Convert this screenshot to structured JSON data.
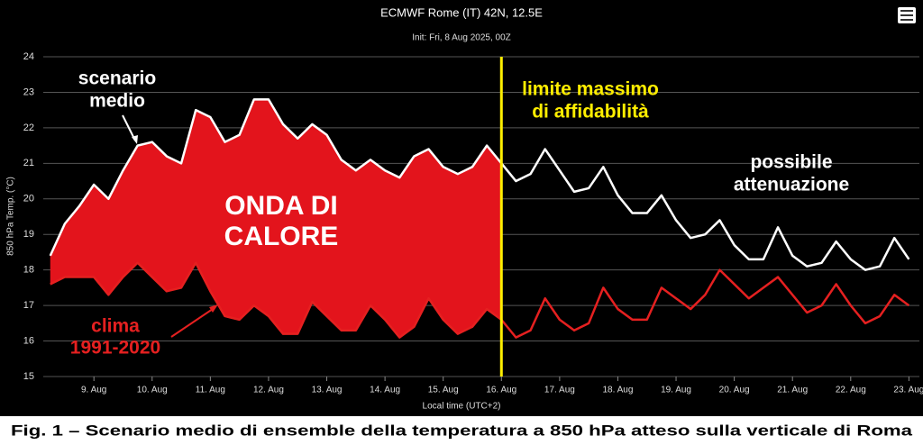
{
  "chart_data": {
    "type": "line",
    "title": "ECMWF Rome (IT) 42N, 12.5E",
    "subtitle": "Init: Fri, 8 Aug 2025, 00Z",
    "y_label": "850 hPa Temp. (°C)",
    "x_label": "Local time (UTC+2)",
    "caption": "Fig. 1 – Scenario medio di ensemble della temperatura a 850 hPa atteso sulla verticale di Roma",
    "xlim": [
      8.13,
      23.18
    ],
    "ylim": [
      15,
      24
    ],
    "yticks": [
      15,
      16,
      17,
      18,
      19,
      20,
      21,
      22,
      23,
      24
    ],
    "xticks": [
      {
        "value": 9,
        "label": "9. Aug"
      },
      {
        "value": 10,
        "label": "10. Aug"
      },
      {
        "value": 11,
        "label": "11. Aug"
      },
      {
        "value": 12,
        "label": "12. Aug"
      },
      {
        "value": 13,
        "label": "13. Aug"
      },
      {
        "value": 14,
        "label": "14. Aug"
      },
      {
        "value": 15,
        "label": "15. Aug"
      },
      {
        "value": 16,
        "label": "16. Aug"
      },
      {
        "value": 17,
        "label": "17. Aug"
      },
      {
        "value": 18,
        "label": "18. Aug"
      },
      {
        "value": 19,
        "label": "19. Aug"
      },
      {
        "value": 20,
        "label": "20. Aug"
      },
      {
        "value": 21,
        "label": "21. Aug"
      },
      {
        "value": 22,
        "label": "22. Aug"
      },
      {
        "value": 23,
        "label": "23. Aug"
      }
    ],
    "grid": true,
    "x": [
      8.25,
      8.5,
      8.75,
      9,
      9.25,
      9.5,
      9.75,
      10,
      10.25,
      10.5,
      10.75,
      11,
      11.25,
      11.5,
      11.75,
      12,
      12.25,
      12.5,
      12.75,
      13,
      13.25,
      13.5,
      13.75,
      14,
      14.25,
      14.5,
      14.75,
      15,
      15.25,
      15.5,
      15.75,
      16,
      16.25,
      16.5,
      16.75,
      17,
      17.25,
      17.5,
      17.75,
      18,
      18.25,
      18.5,
      18.75,
      19,
      19.25,
      19.5,
      19.75,
      20,
      20.25,
      20.5,
      20.75,
      21,
      21.25,
      21.5,
      21.75,
      22,
      22.25,
      22.5,
      22.75,
      23
    ],
    "series": [
      {
        "label_lines": [
          "scenario",
          "medio"
        ],
        "color": "#ffffff",
        "values": [
          18.4,
          19.3,
          19.8,
          20.4,
          20.0,
          20.8,
          21.5,
          21.6,
          21.2,
          21.0,
          22.5,
          22.3,
          21.6,
          21.8,
          22.8,
          22.8,
          22.1,
          21.7,
          22.1,
          21.8,
          21.1,
          20.8,
          21.1,
          20.8,
          20.6,
          21.2,
          21.4,
          20.9,
          20.7,
          20.9,
          21.5,
          21.0,
          20.5,
          20.7,
          21.4,
          20.8,
          20.2,
          20.3,
          20.9,
          20.1,
          19.6,
          19.6,
          20.1,
          19.4,
          18.9,
          19.0,
          19.4,
          18.7,
          18.3,
          18.3,
          19.2,
          18.4,
          18.1,
          18.2,
          18.8,
          18.3,
          18.0,
          18.1,
          18.9,
          18.3
        ]
      },
      {
        "label_lines": [
          "clima",
          "1991-2020"
        ],
        "color": "#e52020",
        "values": [
          17.6,
          17.8,
          17.8,
          17.8,
          17.3,
          17.8,
          18.2,
          17.8,
          17.4,
          17.5,
          18.2,
          17.4,
          16.7,
          16.6,
          17.0,
          16.7,
          16.2,
          16.2,
          17.1,
          16.7,
          16.3,
          16.3,
          17.0,
          16.6,
          16.1,
          16.4,
          17.2,
          16.6,
          16.2,
          16.4,
          16.9,
          16.6,
          16.1,
          16.3,
          17.2,
          16.6,
          16.3,
          16.5,
          17.5,
          16.9,
          16.6,
          16.6,
          17.5,
          17.2,
          16.9,
          17.3,
          18.0,
          17.6,
          17.2,
          17.5,
          17.8,
          17.3,
          16.8,
          17.0,
          17.6,
          17.0,
          16.5,
          16.7,
          17.3,
          17.0
        ]
      }
    ],
    "fill_color": "#e3141c",
    "fill_label_lines": [
      "ONDA DI",
      "CALORE"
    ],
    "vline": {
      "x": 16,
      "color": "#ffee00",
      "label_lines": [
        "limite massimo",
        "di affidabilità"
      ]
    },
    "end_label_lines": [
      "possibile",
      "attenuazione"
    ]
  }
}
